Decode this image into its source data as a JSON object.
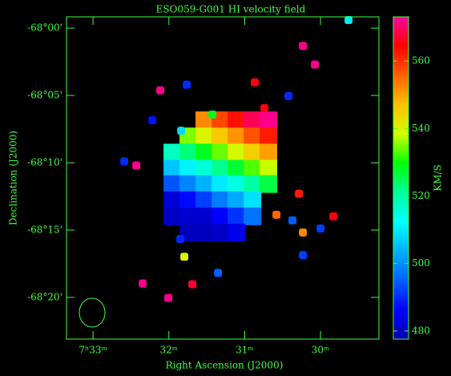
{
  "chart_data": {
    "type": "velocity-map",
    "title": "ESO059-G001  HI velocity field",
    "x_label": "Right Ascension (J2000)",
    "y_label": "Declination (J2000)",
    "colorbar_label": "KM/S",
    "xlim": [
      33.35,
      29.23
    ],
    "xticks": [
      {
        "value": 33,
        "label": "7ʰ33ᵐ"
      },
      {
        "value": 32,
        "label": "32ᵐ"
      },
      {
        "value": 31,
        "label": "31ᵐ"
      },
      {
        "value": 30,
        "label": "30ᵐ"
      }
    ],
    "ylim": [
      -68.385,
      -67.986
    ],
    "yticks": [
      {
        "value": -68.0,
        "label": "-68°00'"
      },
      {
        "value": -68.0833,
        "label": "-68°05'"
      },
      {
        "value": -68.1667,
        "label": "-68°10'"
      },
      {
        "value": -68.25,
        "label": "-68°15'"
      },
      {
        "value": -68.3333,
        "label": "-68°20'"
      }
    ],
    "clim": [
      477.6,
      573.1
    ],
    "cticks": [
      480,
      500,
      520,
      540,
      560
    ],
    "colormap": [
      "#0000b0",
      "#0000ff",
      "#0060ff",
      "#00b0ff",
      "#00ffff",
      "#00ffa0",
      "#00ff00",
      "#d0ff00",
      "#ffc000",
      "#ff6000",
      "#ff0000",
      "#ff00a0"
    ],
    "layers": [
      {
        "x": [
          31.532,
          31.32,
          31.109,
          30.898,
          30.687,
          31.743,
          31.532,
          31.32,
          31.109,
          30.898,
          30.687,
          31.954,
          31.743,
          31.532,
          31.32,
          31.109,
          30.898,
          30.687,
          31.954,
          31.743,
          31.532,
          31.32,
          31.109,
          30.898,
          30.687,
          31.954,
          31.743,
          31.532,
          31.32,
          31.109,
          30.898,
          30.687,
          31.954,
          31.743,
          31.532,
          31.32,
          31.109,
          30.898,
          31.954,
          31.743,
          31.532,
          31.32,
          31.109,
          30.898,
          31.743,
          31.532,
          31.32,
          31.109
        ],
        "y": [
          -68.114,
          -68.114,
          -68.114,
          -68.114,
          -68.114,
          -68.134,
          -68.134,
          -68.134,
          -68.134,
          -68.134,
          -68.134,
          -68.154,
          -68.154,
          -68.154,
          -68.154,
          -68.154,
          -68.154,
          -68.154,
          -68.174,
          -68.174,
          -68.174,
          -68.174,
          -68.174,
          -68.174,
          -68.174,
          -68.193,
          -68.193,
          -68.193,
          -68.193,
          -68.193,
          -68.193,
          -68.193,
          -68.213,
          -68.213,
          -68.213,
          -68.213,
          -68.213,
          -68.213,
          -68.233,
          -68.233,
          -68.233,
          -68.233,
          -68.233,
          -68.233,
          -68.253,
          -68.253,
          -68.253,
          -68.253
        ],
        "values": [
          552,
          558,
          563,
          569,
          572,
          535,
          540,
          546,
          551,
          557,
          562,
          518,
          523,
          528,
          534,
          539,
          545,
          550,
          506,
          511,
          516,
          522,
          527,
          533,
          538,
          494,
          499,
          504,
          510,
          515,
          521,
          526,
          482,
          487,
          492,
          498,
          503,
          509,
          480,
          481,
          481,
          486,
          491,
          497,
          479,
          479,
          480,
          484
        ]
      },
      {
        "x": [
          32.113,
          31.764,
          32.218,
          31.838,
          31.426,
          32.43,
          32.588,
          30.232,
          30.074,
          30.866,
          30.423,
          30.74,
          30.285,
          30.581,
          30.37,
          30.232,
          30.0,
          29.831,
          31.849,
          30.232,
          31.352,
          31.69,
          32.007,
          32.345,
          31.796,
          29.63
        ],
        "y": [
          -68.077,
          -68.07,
          -68.114,
          -68.127,
          -68.107,
          -68.17,
          -68.165,
          -68.022,
          -68.045,
          -68.067,
          -68.084,
          -68.099,
          -68.205,
          -68.231,
          -68.238,
          -68.253,
          -68.248,
          -68.233,
          -68.261,
          -68.281,
          -68.303,
          -68.317,
          -68.334,
          -68.316,
          -68.283,
          -67.99
        ],
        "values": [
          572,
          490,
          488,
          508,
          528,
          572,
          490,
          572,
          572,
          565,
          490,
          565,
          562,
          555,
          495,
          552,
          492,
          565,
          490,
          492,
          495,
          567,
          572,
          572,
          540,
          510
        ]
      }
    ]
  }
}
